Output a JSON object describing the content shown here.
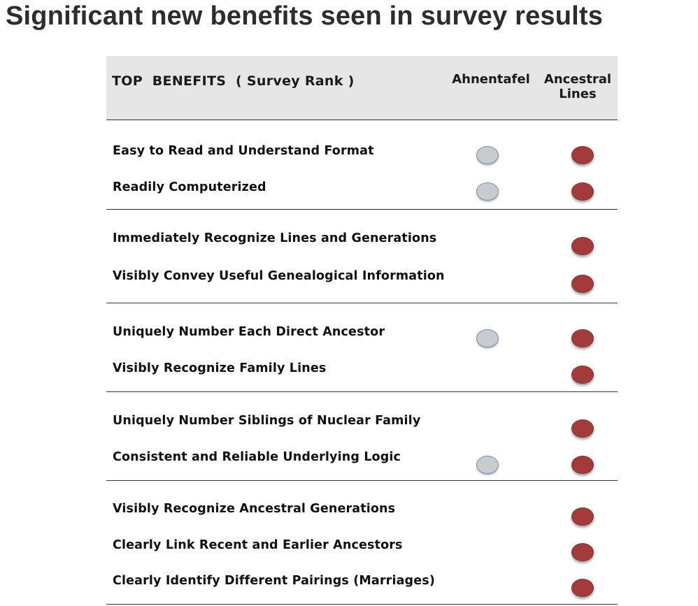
{
  "title": "Significant new benefits seen in survey results",
  "table": {
    "header": {
      "benefits_label": "TOP  BENEFITS  ( Survey Rank )",
      "col_ahnentafel": "Ahnentafel",
      "col_ancestral_line1": "Ancestral",
      "col_ancestral_line2": "Lines"
    },
    "groups": [
      {
        "rows": [
          {
            "label": "Easy to Read and Understand Format",
            "ahnentafel": true,
            "ancestral_lines": true
          },
          {
            "label": "Readily Computerized",
            "ahnentafel": true,
            "ancestral_lines": true
          }
        ]
      },
      {
        "rows": [
          {
            "label": "Immediately Recognize Lines and Generations",
            "ahnentafel": false,
            "ancestral_lines": true
          },
          {
            "label": "Visibly Convey Useful Genealogical Information",
            "ahnentafel": false,
            "ancestral_lines": true
          }
        ]
      },
      {
        "rows": [
          {
            "label": "Uniquely Number Each Direct Ancestor",
            "ahnentafel": true,
            "ancestral_lines": true
          },
          {
            "label": "Visibly Recognize Family Lines",
            "ahnentafel": false,
            "ancestral_lines": true
          }
        ]
      },
      {
        "rows": [
          {
            "label": "Uniquely Number Siblings of Nuclear Family",
            "ahnentafel": false,
            "ancestral_lines": true
          },
          {
            "label": "Consistent and Reliable Underlying Logic",
            "ahnentafel": true,
            "ancestral_lines": true
          }
        ]
      },
      {
        "rows": [
          {
            "label": "Visibly Recognize Ancestral Generations",
            "ahnentafel": false,
            "ancestral_lines": true
          },
          {
            "label": "Clearly Link Recent and Earlier Ancestors",
            "ahnentafel": false,
            "ancestral_lines": true
          },
          {
            "label": "Clearly Identify Different Pairings (Marriages)",
            "ahnentafel": false,
            "ancestral_lines": true
          }
        ]
      }
    ],
    "colors": {
      "ahnentafel_dot": "#c9cccf",
      "ancestral_dot": "#a33b3b"
    }
  }
}
